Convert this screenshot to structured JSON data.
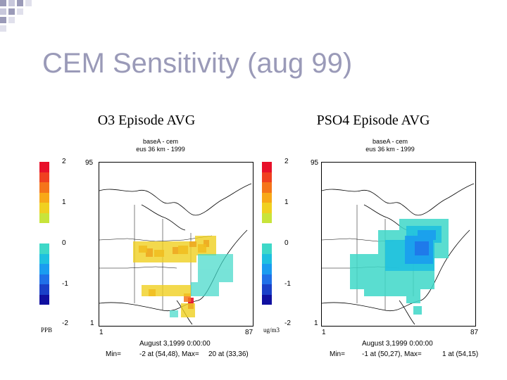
{
  "slide": {
    "title": "CEM Sensitivity (aug 99)"
  },
  "panels": [
    {
      "title": "O3 Episode AVG",
      "run": "baseA - cem",
      "grid": "eus 36 km - 1999",
      "units": "PPB",
      "scale_labels": [
        "2",
        "1",
        "0",
        "-1",
        "-2"
      ],
      "axis": {
        "y_top": "95",
        "y_bottom": "1",
        "x_left": "1",
        "x_right": "87"
      },
      "date": "August 3,1999 0:00:00",
      "min_label": "Min=",
      "min_value": "-2 at (54,48), Max=",
      "max_value": "20 at (33,36)"
    },
    {
      "title": "PSO4 Episode AVG",
      "run": "baseA - cem",
      "grid": "eus 36 km - 1999",
      "units": "ug/m3",
      "scale_labels": [
        "2",
        "1",
        "0",
        "-1",
        "-2"
      ],
      "axis": {
        "y_top": "95",
        "y_bottom": "1",
        "x_left": "1",
        "x_right": "87"
      },
      "date": "August 3,1999 0:00:00",
      "min_label": "Min=",
      "min_value": "-1 at (50,27), Max=",
      "max_value": "1 at (54,15)"
    }
  ],
  "colors": {
    "scale": [
      "#e8102a",
      "#f04020",
      "#f5741a",
      "#f8a818",
      "#f0d020",
      "#c8e43a",
      "#ffffff",
      "#ffffff",
      "#3ed8c8",
      "#1ec0e0",
      "#1a9cf0",
      "#2070e8",
      "#1a40c8",
      "#1010a0"
    ],
    "title": "#9a9ab8"
  }
}
